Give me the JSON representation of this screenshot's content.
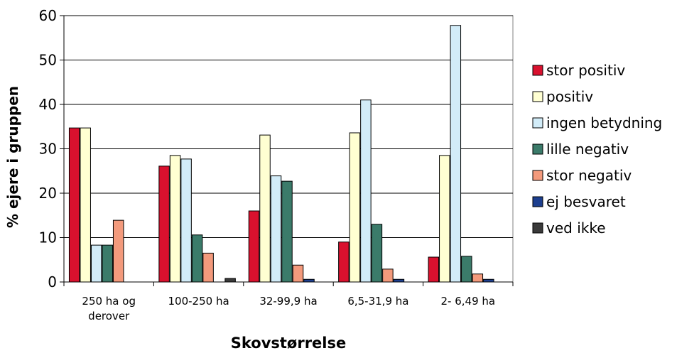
{
  "chart_data": {
    "type": "bar",
    "title": "",
    "xlabel": "Skovstørrelse",
    "ylabel": "% ejere i gruppen",
    "ylim": [
      0,
      60
    ],
    "yticks": [
      "0",
      "10",
      "20",
      "30",
      "40",
      "50",
      "60"
    ],
    "grid": true,
    "legend_position": "right",
    "categories": [
      [
        "250 ha og",
        "derover"
      ],
      [
        "100-250 ha"
      ],
      [
        "32-99,9 ha"
      ],
      [
        "6,5-31,9 ha"
      ],
      [
        "2- 6,49 ha"
      ]
    ],
    "series": [
      {
        "name": "stor positiv",
        "color": "#d9112e",
        "values": [
          34.7,
          26.1,
          16.0,
          9.0,
          5.6
        ]
      },
      {
        "name": "positiv",
        "color": "#ffffd2",
        "values": [
          34.7,
          28.5,
          33.1,
          33.6,
          28.5
        ]
      },
      {
        "name": "ingen betydning",
        "color": "#d2ecf8",
        "values": [
          8.3,
          27.7,
          23.9,
          41.0,
          57.8
        ]
      },
      {
        "name": "lille negativ",
        "color": "#3b7b6a",
        "values": [
          8.3,
          10.6,
          22.7,
          13.0,
          5.8
        ]
      },
      {
        "name": "stor negativ",
        "color": "#f39a7c",
        "values": [
          13.9,
          6.5,
          3.8,
          2.9,
          1.8
        ]
      },
      {
        "name": "ej besvaret",
        "color": "#1d3f8f",
        "values": [
          0,
          0,
          0.6,
          0.6,
          0.6
        ]
      },
      {
        "name": "ved ikke",
        "color": "#3a3a3a",
        "values": [
          0,
          0.8,
          0,
          0,
          0
        ]
      }
    ]
  }
}
